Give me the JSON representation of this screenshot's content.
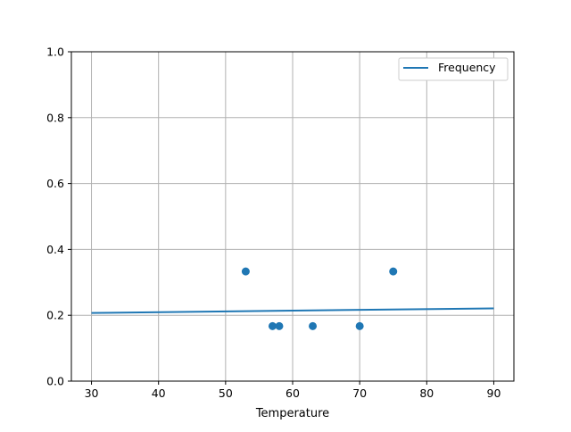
{
  "chart_data": {
    "type": "scatter",
    "title": "",
    "xlabel": "Temperature",
    "ylabel": "",
    "xlim": [
      27,
      93
    ],
    "ylim": [
      0,
      1.0
    ],
    "xticks": [
      30,
      40,
      50,
      60,
      70,
      80,
      90
    ],
    "xtick_labels": [
      "30",
      "40",
      "50",
      "60",
      "70",
      "80",
      "90"
    ],
    "yticks": [
      0,
      0.2,
      0.4,
      0.6,
      0.8,
      1.0
    ],
    "ytick_labels": [
      "0.0",
      "0.2",
      "0.4",
      "0.6",
      "0.8",
      "1.0"
    ],
    "grid": true,
    "legend_position": "top-right",
    "color": "#1f77b4",
    "series": [
      {
        "name": "Frequency",
        "kind": "line",
        "x": [
          30,
          90
        ],
        "y": [
          0.207,
          0.221
        ]
      },
      {
        "kind": "scatter",
        "x": [
          53,
          57,
          58,
          63,
          70,
          75
        ],
        "y": [
          0.333,
          0.167,
          0.167,
          0.167,
          0.167,
          0.333
        ]
      }
    ]
  }
}
